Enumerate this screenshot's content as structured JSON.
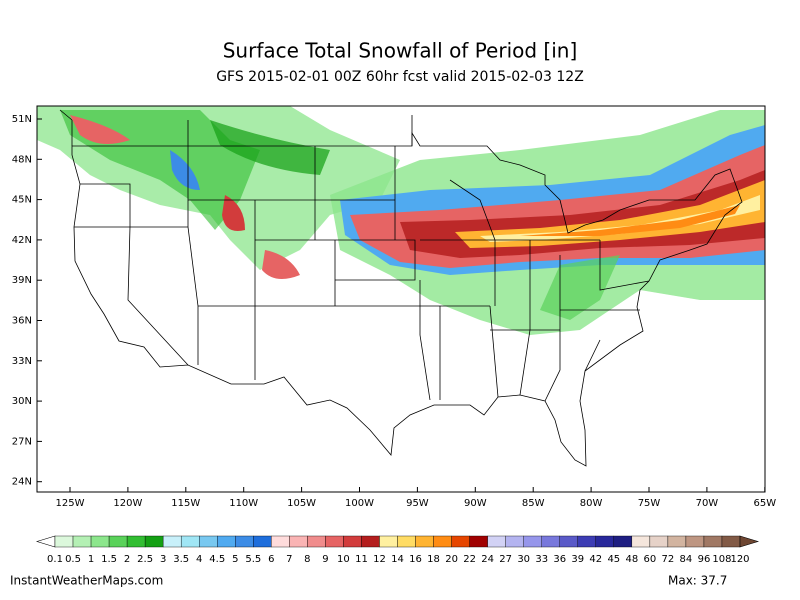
{
  "header": {
    "title": "Surface Total Snowfall of Period [in]",
    "subtitle": "GFS 2015-02-01 00Z 60hr fcst valid 2015-02-03 12Z"
  },
  "map": {
    "lat_labels": [
      "51N",
      "48N",
      "45N",
      "42N",
      "39N",
      "36N",
      "33N",
      "30N",
      "27N",
      "24N"
    ],
    "lon_labels": [
      "125W",
      "120W",
      "115W",
      "110W",
      "105W",
      "100W",
      "95W",
      "90W",
      "85W",
      "80W",
      "75W",
      "70W",
      "65W"
    ]
  },
  "colorbar": {
    "labels": [
      "0.1",
      "0.5",
      "1",
      "1.5",
      "2",
      "2.5",
      "3",
      "3.5",
      "4",
      "4.5",
      "5",
      "5.5",
      "6",
      "7",
      "8",
      "9",
      "10",
      "11",
      "12",
      "14",
      "16",
      "18",
      "20",
      "22",
      "24",
      "27",
      "30",
      "33",
      "36",
      "39",
      "42",
      "45",
      "48",
      "60",
      "72",
      "84",
      "96",
      "108",
      "120"
    ],
    "colors": [
      "#dcf8dc",
      "#b4f0b4",
      "#8ce68c",
      "#5ad25a",
      "#32be32",
      "#14a014",
      "#c8f0fa",
      "#a0e6f5",
      "#78c8f0",
      "#50aaf0",
      "#3c8ce6",
      "#1e6edc",
      "#ffdcdc",
      "#fab4b4",
      "#f08c8c",
      "#e66464",
      "#d23c3c",
      "#b41e1e",
      "#fff0a0",
      "#ffdc64",
      "#ffb432",
      "#ff8c14",
      "#e64600",
      "#a00000",
      "#d2d2f5",
      "#b4b4f0",
      "#9696eb",
      "#7878dc",
      "#5a5ac8",
      "#3c3cb4",
      "#28289b",
      "#1e1e82",
      "#f5e6dc",
      "#e6d2c8",
      "#d2b4a0",
      "#be9682",
      "#a07864",
      "#825a46"
    ],
    "low_color": "#ffffff",
    "high_color": "#6e4632"
  },
  "footer": {
    "left": "InstantWeatherMaps.com",
    "right": "Max:  37.7"
  }
}
